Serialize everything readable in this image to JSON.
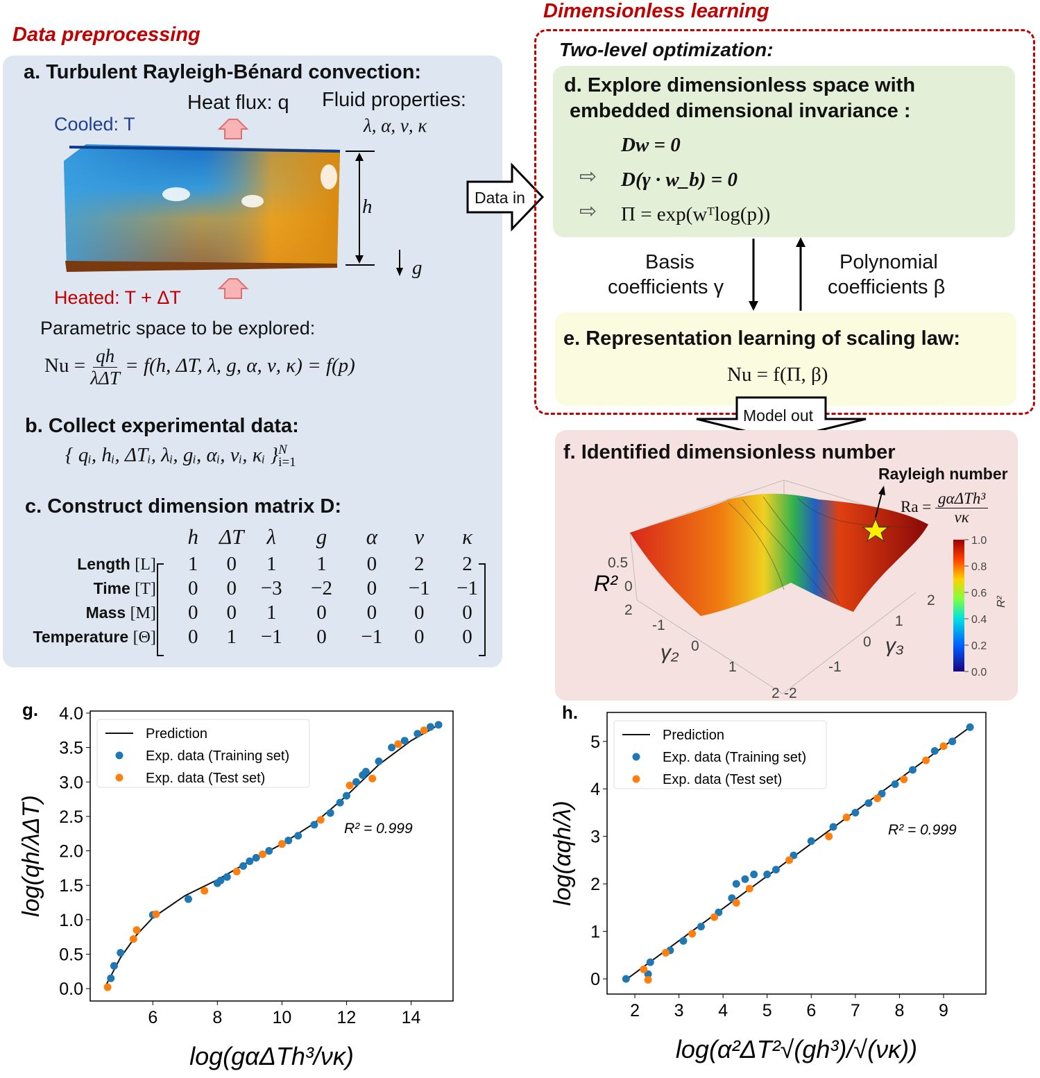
{
  "sections": {
    "left": "Data preprocessing",
    "right": "Dimensionless learning"
  },
  "panel_a": {
    "title": "a. Turbulent Rayleigh-Bénard convection:",
    "heat_flux": "Heat flux: q",
    "fluid_props": "Fluid properties:",
    "fluid_syms": "λ, α, ν, κ",
    "cooled": "Cooled: T",
    "heated": "Heated: T + ΔT",
    "h": "h",
    "g": "g",
    "param_space": "Parametric space to be explored:",
    "nu_lhs": "Nu =",
    "nu_num": "qh",
    "nu_den": "λΔT",
    "nu_rhs": "= f(h, ΔT, λ, g, α, ν, κ) = f(p)"
  },
  "panel_b": {
    "title": "b. Collect experimental data:",
    "set": "{ qᵢ, hᵢ, ΔTᵢ, λᵢ, gᵢ, αᵢ, νᵢ, κᵢ }",
    "sup": "N",
    "sub": "i=1"
  },
  "panel_c": {
    "title": "c. Construct dimension matrix D:",
    "columns": [
      "h",
      "ΔT",
      "λ",
      "g",
      "α",
      "ν",
      "κ"
    ],
    "rows": [
      {
        "label": "Length",
        "unit": "[L]",
        "values": [
          "1",
          "0",
          "1",
          "1",
          "0",
          "2",
          "2"
        ]
      },
      {
        "label": "Time",
        "unit": "[T]",
        "values": [
          "0",
          "0",
          "−3",
          "−2",
          "0",
          "−1",
          "−1"
        ]
      },
      {
        "label": "Mass",
        "unit": "[M]",
        "values": [
          "0",
          "0",
          "1",
          "0",
          "0",
          "0",
          "0"
        ]
      },
      {
        "label": "Temperature",
        "unit": "[Θ]",
        "values": [
          "0",
          "1",
          "−1",
          "0",
          "−1",
          "0",
          "0"
        ]
      }
    ]
  },
  "data_in": "Data in",
  "model_out": "Model out",
  "two_level": "Two-level optimization:",
  "panel_d": {
    "title_1": "d. Explore dimensionless space with",
    "title_2": "embedded dimensional invariance :",
    "eq1": "Dw = 0",
    "eq2": "D(γ · w_b) = 0",
    "eq3": "Π = exp(wᵀlog(p))"
  },
  "loop": {
    "basis_1": "Basis",
    "basis_2": "coefficients γ",
    "poly_1": "Polynomial",
    "poly_2": "coefficients β"
  },
  "panel_e": {
    "title": "e. Representation learning of scaling law:",
    "eq": "Nu = f(Π, β)"
  },
  "panel_f": {
    "title": "f. Identified dimensionless number",
    "rayleigh": "Rayleigh number",
    "ra_lhs": "Ra =",
    "ra_num": "gαΔTh³",
    "ra_den": "νκ",
    "z_label": "R²",
    "z_ticks": [
      "0.5",
      "0"
    ],
    "y_label": "γ₂",
    "y_ticks": [
      "2",
      "-1",
      "0",
      "1",
      "2"
    ],
    "x_label": "γ₃",
    "x_ticks": [
      "2",
      "1",
      "0",
      "-1",
      "-2"
    ],
    "colorbar_ticks": [
      "1.0",
      "0.8",
      "0.6",
      "0.4",
      "0.2",
      "0.0"
    ],
    "colorbar_label": "R²"
  },
  "colors": {
    "section_red": "#c00000",
    "panel_blue": "#dde6f1",
    "panel_green": "#e3efd6",
    "panel_yellow": "#fbfbe0",
    "panel_pink": "#f6e1e1",
    "training": "#1f77b4",
    "test": "#ff7f0e"
  },
  "chart_data": [
    {
      "panel": "g.",
      "type": "scatter",
      "xlabel": "log(gαΔTh³/νκ)",
      "ylabel": "log(qh/λΔT)",
      "xlim": [
        4.06,
        15.3
      ],
      "ylim": [
        -0.18,
        4.03
      ],
      "xticks": [
        6,
        8,
        10,
        12,
        14
      ],
      "yticks": [
        "0.0",
        "0.5",
        "1.0",
        "1.5",
        "2.0",
        "2.5",
        "3.0",
        "3.5",
        "4.0"
      ],
      "grid": false,
      "legend": "top-left",
      "annotation": "R² = 0.999",
      "series": [
        {
          "name": "Prediction",
          "kind": "line",
          "points": [
            [
              4.55,
              0.05
            ],
            [
              5,
              0.45
            ],
            [
              5.5,
              0.78
            ],
            [
              6,
              1.03
            ],
            [
              7,
              1.35
            ],
            [
              8,
              1.58
            ],
            [
              9,
              1.85
            ],
            [
              10,
              2.1
            ],
            [
              11,
              2.4
            ],
            [
              12,
              2.8
            ],
            [
              13,
              3.25
            ],
            [
              14,
              3.6
            ],
            [
              14.75,
              3.8
            ]
          ]
        },
        {
          "name": "Exp. data (Training set)",
          "kind": "scatter",
          "points": [
            [
              4.7,
              0.15
            ],
            [
              4.8,
              0.33
            ],
            [
              5.0,
              0.52
            ],
            [
              6.0,
              1.07
            ],
            [
              7.1,
              1.3
            ],
            [
              8.0,
              1.53
            ],
            [
              8.1,
              1.57
            ],
            [
              8.3,
              1.62
            ],
            [
              8.8,
              1.78
            ],
            [
              9.0,
              1.85
            ],
            [
              9.2,
              1.9
            ],
            [
              9.6,
              2.0
            ],
            [
              10.0,
              2.1
            ],
            [
              10.2,
              2.15
            ],
            [
              10.5,
              2.22
            ],
            [
              11.0,
              2.38
            ],
            [
              11.5,
              2.55
            ],
            [
              11.8,
              2.7
            ],
            [
              12.0,
              2.8
            ],
            [
              12.3,
              3.0
            ],
            [
              12.5,
              3.1
            ],
            [
              12.6,
              3.15
            ],
            [
              13.0,
              3.3
            ],
            [
              13.4,
              3.5
            ],
            [
              13.8,
              3.6
            ],
            [
              14.2,
              3.7
            ],
            [
              14.6,
              3.8
            ],
            [
              14.85,
              3.83
            ]
          ]
        },
        {
          "name": "Exp. data (Test set)",
          "kind": "scatter",
          "points": [
            [
              4.6,
              0.02
            ],
            [
              5.4,
              0.72
            ],
            [
              5.5,
              0.85
            ],
            [
              6.1,
              1.08
            ],
            [
              7.6,
              1.42
            ],
            [
              8.6,
              1.7
            ],
            [
              9.4,
              1.95
            ],
            [
              10.0,
              2.1
            ],
            [
              11.2,
              2.45
            ],
            [
              12.1,
              2.95
            ],
            [
              12.8,
              3.05
            ],
            [
              13.6,
              3.55
            ],
            [
              14.4,
              3.75
            ]
          ]
        }
      ]
    },
    {
      "panel": "h.",
      "type": "scatter",
      "xlabel": "log(α²ΔT²√(gh³)/√(νκ))",
      "ylabel": "log(αqh/λ)",
      "xlim": [
        1.37,
        9.96
      ],
      "ylim": [
        -0.32,
        5.61
      ],
      "xticks": [
        2,
        3,
        4,
        5,
        6,
        7,
        8,
        9
      ],
      "yticks": [
        "0",
        "1",
        "2",
        "3",
        "4",
        "5"
      ],
      "grid": false,
      "legend": "top-left",
      "annotation": "R² = 0.999",
      "series": [
        {
          "name": "Prediction",
          "kind": "line",
          "points": [
            [
              1.75,
              -0.05
            ],
            [
              9.6,
              5.3
            ]
          ]
        },
        {
          "name": "Exp. data (Training set)",
          "kind": "scatter",
          "points": [
            [
              1.8,
              0
            ],
            [
              2.3,
              0.1
            ],
            [
              2.35,
              0.35
            ],
            [
              2.8,
              0.6
            ],
            [
              3.1,
              0.8
            ],
            [
              3.5,
              1.1
            ],
            [
              3.9,
              1.4
            ],
            [
              4.2,
              1.7
            ],
            [
              4.3,
              2.0
            ],
            [
              4.5,
              2.1
            ],
            [
              4.7,
              2.2
            ],
            [
              5.0,
              2.2
            ],
            [
              5.2,
              2.3
            ],
            [
              5.6,
              2.6
            ],
            [
              6.0,
              2.9
            ],
            [
              6.5,
              3.2
            ],
            [
              7.0,
              3.5
            ],
            [
              7.3,
              3.7
            ],
            [
              7.6,
              3.9
            ],
            [
              7.9,
              4.1
            ],
            [
              8.3,
              4.4
            ],
            [
              8.8,
              4.8
            ],
            [
              9.2,
              5.0
            ],
            [
              9.6,
              5.3
            ]
          ]
        },
        {
          "name": "Exp. data (Test set)",
          "kind": "scatter",
          "points": [
            [
              2.2,
              0.2
            ],
            [
              2.3,
              -0.02
            ],
            [
              2.7,
              0.55
            ],
            [
              3.3,
              0.95
            ],
            [
              3.8,
              1.3
            ],
            [
              4.3,
              1.6
            ],
            [
              4.6,
              1.9
            ],
            [
              5.5,
              2.5
            ],
            [
              6.4,
              3.0
            ],
            [
              6.8,
              3.4
            ],
            [
              7.5,
              3.8
            ],
            [
              8.1,
              4.2
            ],
            [
              8.6,
              4.6
            ],
            [
              9.0,
              4.9
            ]
          ]
        }
      ]
    }
  ]
}
